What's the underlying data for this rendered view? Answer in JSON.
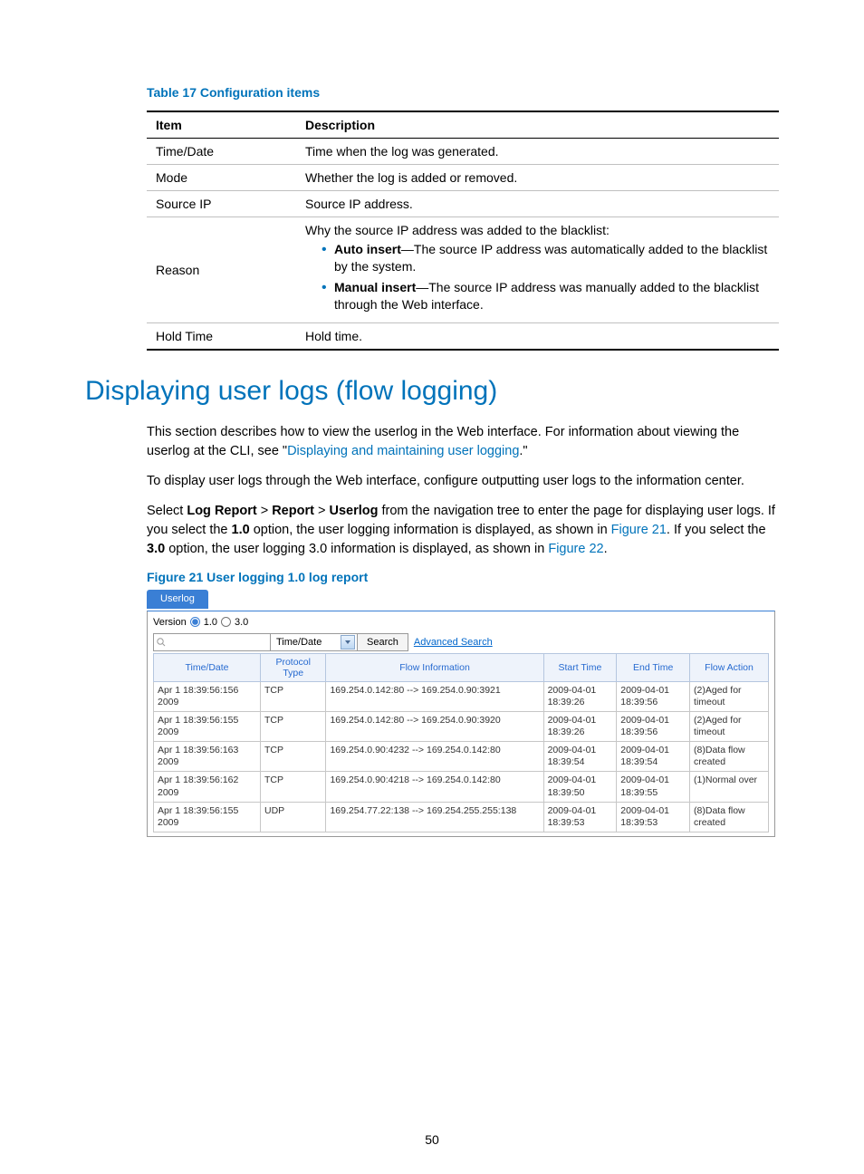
{
  "table_caption": "Table 17 Configuration items",
  "config_columns": [
    "Item",
    "Description"
  ],
  "config_rows": {
    "r0": [
      "Time/Date",
      "Time when the log was generated."
    ],
    "r1": [
      "Mode",
      "Whether the log is added or removed."
    ],
    "r2": [
      "Source IP",
      "Source IP address."
    ],
    "r3_item": "Reason",
    "r3_intro": "Why the source IP address was added to the blacklist:",
    "r3_b1_lead": "Auto insert",
    "r3_b1_tail": "—The source IP address was automatically added to the blacklist by the system.",
    "r3_b2_lead": "Manual insert",
    "r3_b2_tail": "—The source IP address was manually added to the blacklist through the Web interface.",
    "r4": [
      "Hold Time",
      "Hold time."
    ]
  },
  "heading": "Displaying user logs (flow logging)",
  "para1_a": "This section describes how to view the userlog in the Web interface. For information about viewing the userlog at the CLI, see \"",
  "para1_link": "Displaying and maintaining user logging",
  "para1_b": ".\"",
  "para2": "To display user logs through the Web interface, configure outputting user logs to the information center.",
  "para3_a": "Select ",
  "para3_b1": "Log Report",
  "para3_gt1": " > ",
  "para3_b2": "Report",
  "para3_gt2": " > ",
  "para3_b3": "Userlog",
  "para3_c": " from the navigation tree to enter the page for displaying user logs. If you select the ",
  "para3_d": "1.0",
  "para3_e": " option, the user logging information is displayed, as shown in ",
  "para3_link1": "Figure 21",
  "para3_f": ". If you select the ",
  "para3_g": "3.0",
  "para3_h": " option, the user logging 3.0 information is displayed, as shown in ",
  "para3_link2": "Figure 22",
  "para3_i": ".",
  "figure_caption": "Figure 21 User logging 1.0 log report",
  "fig": {
    "tab_label": "Userlog",
    "version_label": "Version",
    "v10": "1.0",
    "v30": "3.0",
    "select_value": "Time/Date",
    "search_btn": "Search",
    "adv_search": "Advanced Search",
    "columns": [
      "Time/Date",
      "Protocol Type",
      "Flow Information",
      "Start Time",
      "End Time",
      "Flow Action"
    ],
    "rows": [
      [
        "Apr 1 18:39:56:156 2009",
        "TCP",
        "169.254.0.142:80 --> 169.254.0.90:3921",
        "2009-04-01 18:39:26",
        "2009-04-01 18:39:56",
        "(2)Aged for timeout"
      ],
      [
        "Apr 1 18:39:56:155 2009",
        "TCP",
        "169.254.0.142:80 --> 169.254.0.90:3920",
        "2009-04-01 18:39:26",
        "2009-04-01 18:39:56",
        "(2)Aged for timeout"
      ],
      [
        "Apr 1 18:39:56:163 2009",
        "TCP",
        "169.254.0.90:4232 --> 169.254.0.142:80",
        "2009-04-01 18:39:54",
        "2009-04-01 18:39:54",
        "(8)Data flow created"
      ],
      [
        "Apr 1 18:39:56:162 2009",
        "TCP",
        "169.254.0.90:4218 --> 169.254.0.142:80",
        "2009-04-01 18:39:50",
        "2009-04-01 18:39:55",
        "(1)Normal over"
      ],
      [
        "Apr 1 18:39:56:155 2009",
        "UDP",
        "169.254.77.22:138 --> 169.254.255.255:138",
        "2009-04-01 18:39:53",
        "2009-04-01 18:39:53",
        "(8)Data flow created"
      ]
    ]
  },
  "page_number": "50",
  "colors": {
    "link_blue": "#0073ba",
    "tab_blue": "#3a7fd5",
    "header_bg": "#eef3fb",
    "header_text": "#266ad0"
  }
}
